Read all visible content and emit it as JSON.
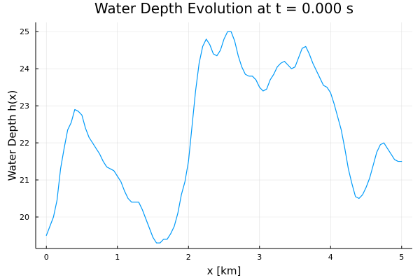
{
  "chart_data": {
    "type": "line",
    "title": "Water Depth Evolution at t = 0.000 s",
    "xlabel": "x [km]",
    "ylabel": "Water Depth h(x)",
    "xlim": [
      -0.15,
      5.15
    ],
    "ylim": [
      19.15,
      25.25
    ],
    "x_ticks": [
      0,
      1,
      2,
      3,
      4,
      5
    ],
    "x_tick_labels": [
      "0",
      "1",
      "2",
      "3",
      "4",
      "5"
    ],
    "y_ticks": [
      20,
      21,
      22,
      23,
      24,
      25
    ],
    "y_tick_labels": [
      "20",
      "21",
      "22",
      "23",
      "24",
      "25"
    ],
    "grid": true,
    "legend": "none",
    "series": [
      {
        "color": "#009af9",
        "points": [
          [
            0.0,
            19.5
          ],
          [
            0.05,
            19.75
          ],
          [
            0.1,
            20.0
          ],
          [
            0.15,
            20.45
          ],
          [
            0.2,
            21.3
          ],
          [
            0.25,
            21.85
          ],
          [
            0.3,
            22.35
          ],
          [
            0.35,
            22.55
          ],
          [
            0.4,
            22.9
          ],
          [
            0.45,
            22.85
          ],
          [
            0.5,
            22.75
          ],
          [
            0.55,
            22.4
          ],
          [
            0.6,
            22.15
          ],
          [
            0.65,
            22.0
          ],
          [
            0.7,
            21.85
          ],
          [
            0.75,
            21.7
          ],
          [
            0.8,
            21.5
          ],
          [
            0.85,
            21.35
          ],
          [
            0.9,
            21.3
          ],
          [
            0.95,
            21.25
          ],
          [
            1.0,
            21.1
          ],
          [
            1.05,
            20.95
          ],
          [
            1.1,
            20.7
          ],
          [
            1.15,
            20.5
          ],
          [
            1.2,
            20.4
          ],
          [
            1.25,
            20.4
          ],
          [
            1.3,
            20.4
          ],
          [
            1.35,
            20.2
          ],
          [
            1.4,
            19.95
          ],
          [
            1.45,
            19.7
          ],
          [
            1.5,
            19.45
          ],
          [
            1.55,
            19.3
          ],
          [
            1.6,
            19.3
          ],
          [
            1.65,
            19.4
          ],
          [
            1.7,
            19.4
          ],
          [
            1.75,
            19.55
          ],
          [
            1.8,
            19.75
          ],
          [
            1.85,
            20.1
          ],
          [
            1.9,
            20.6
          ],
          [
            1.95,
            20.95
          ],
          [
            2.0,
            21.5
          ],
          [
            2.05,
            22.45
          ],
          [
            2.1,
            23.4
          ],
          [
            2.15,
            24.15
          ],
          [
            2.2,
            24.6
          ],
          [
            2.25,
            24.8
          ],
          [
            2.3,
            24.65
          ],
          [
            2.35,
            24.4
          ],
          [
            2.4,
            24.35
          ],
          [
            2.45,
            24.5
          ],
          [
            2.5,
            24.8
          ],
          [
            2.55,
            25.0
          ],
          [
            2.6,
            25.0
          ],
          [
            2.65,
            24.75
          ],
          [
            2.7,
            24.35
          ],
          [
            2.75,
            24.05
          ],
          [
            2.8,
            23.85
          ],
          [
            2.85,
            23.8
          ],
          [
            2.9,
            23.8
          ],
          [
            2.95,
            23.7
          ],
          [
            3.0,
            23.5
          ],
          [
            3.05,
            23.4
          ],
          [
            3.1,
            23.45
          ],
          [
            3.15,
            23.7
          ],
          [
            3.2,
            23.85
          ],
          [
            3.25,
            24.05
          ],
          [
            3.3,
            24.15
          ],
          [
            3.35,
            24.2
          ],
          [
            3.4,
            24.1
          ],
          [
            3.45,
            24.0
          ],
          [
            3.5,
            24.05
          ],
          [
            3.55,
            24.3
          ],
          [
            3.6,
            24.55
          ],
          [
            3.65,
            24.6
          ],
          [
            3.7,
            24.4
          ],
          [
            3.75,
            24.15
          ],
          [
            3.8,
            23.95
          ],
          [
            3.85,
            23.75
          ],
          [
            3.9,
            23.55
          ],
          [
            3.95,
            23.5
          ],
          [
            4.0,
            23.35
          ],
          [
            4.05,
            23.05
          ],
          [
            4.1,
            22.7
          ],
          [
            4.15,
            22.35
          ],
          [
            4.2,
            21.85
          ],
          [
            4.25,
            21.3
          ],
          [
            4.3,
            20.9
          ],
          [
            4.35,
            20.55
          ],
          [
            4.4,
            20.5
          ],
          [
            4.45,
            20.6
          ],
          [
            4.5,
            20.8
          ],
          [
            4.55,
            21.05
          ],
          [
            4.6,
            21.4
          ],
          [
            4.65,
            21.75
          ],
          [
            4.7,
            21.95
          ],
          [
            4.75,
            22.0
          ],
          [
            4.8,
            21.85
          ],
          [
            4.85,
            21.7
          ],
          [
            4.9,
            21.55
          ],
          [
            4.95,
            21.5
          ],
          [
            5.0,
            21.5
          ]
        ]
      }
    ]
  }
}
